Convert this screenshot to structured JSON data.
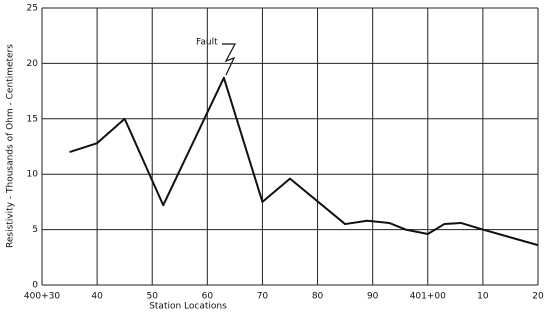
{
  "chart_data": {
    "type": "line",
    "x_label": "Station Locations",
    "y_label": "Resistivity - Thousands of Ohm - Centimeters",
    "annotation": "Fault",
    "x": [
      35,
      40,
      45,
      52,
      63,
      70,
      75,
      85,
      89,
      93,
      96,
      100,
      103,
      106,
      110,
      120
    ],
    "series": [
      {
        "color": "#111111",
        "values": [
          12,
          12.8,
          15,
          7.2,
          18.7,
          7.5,
          9.6,
          5.5,
          5.8,
          5.6,
          5.0,
          4.6,
          5.5,
          5.6,
          5.0,
          3.6
        ]
      }
    ],
    "xlim": [
      30,
      120
    ],
    "xticks": [
      {
        "value": 30,
        "label": "400+30"
      },
      40,
      50,
      60,
      70,
      80,
      90,
      {
        "value": 100,
        "label": "401+00"
      },
      {
        "value": 110,
        "label": "10"
      },
      {
        "value": 120,
        "label": "20"
      }
    ],
    "ylim": [
      0,
      25
    ],
    "yticks": [
      0,
      5,
      10,
      15,
      20,
      25
    ],
    "grid": true
  }
}
